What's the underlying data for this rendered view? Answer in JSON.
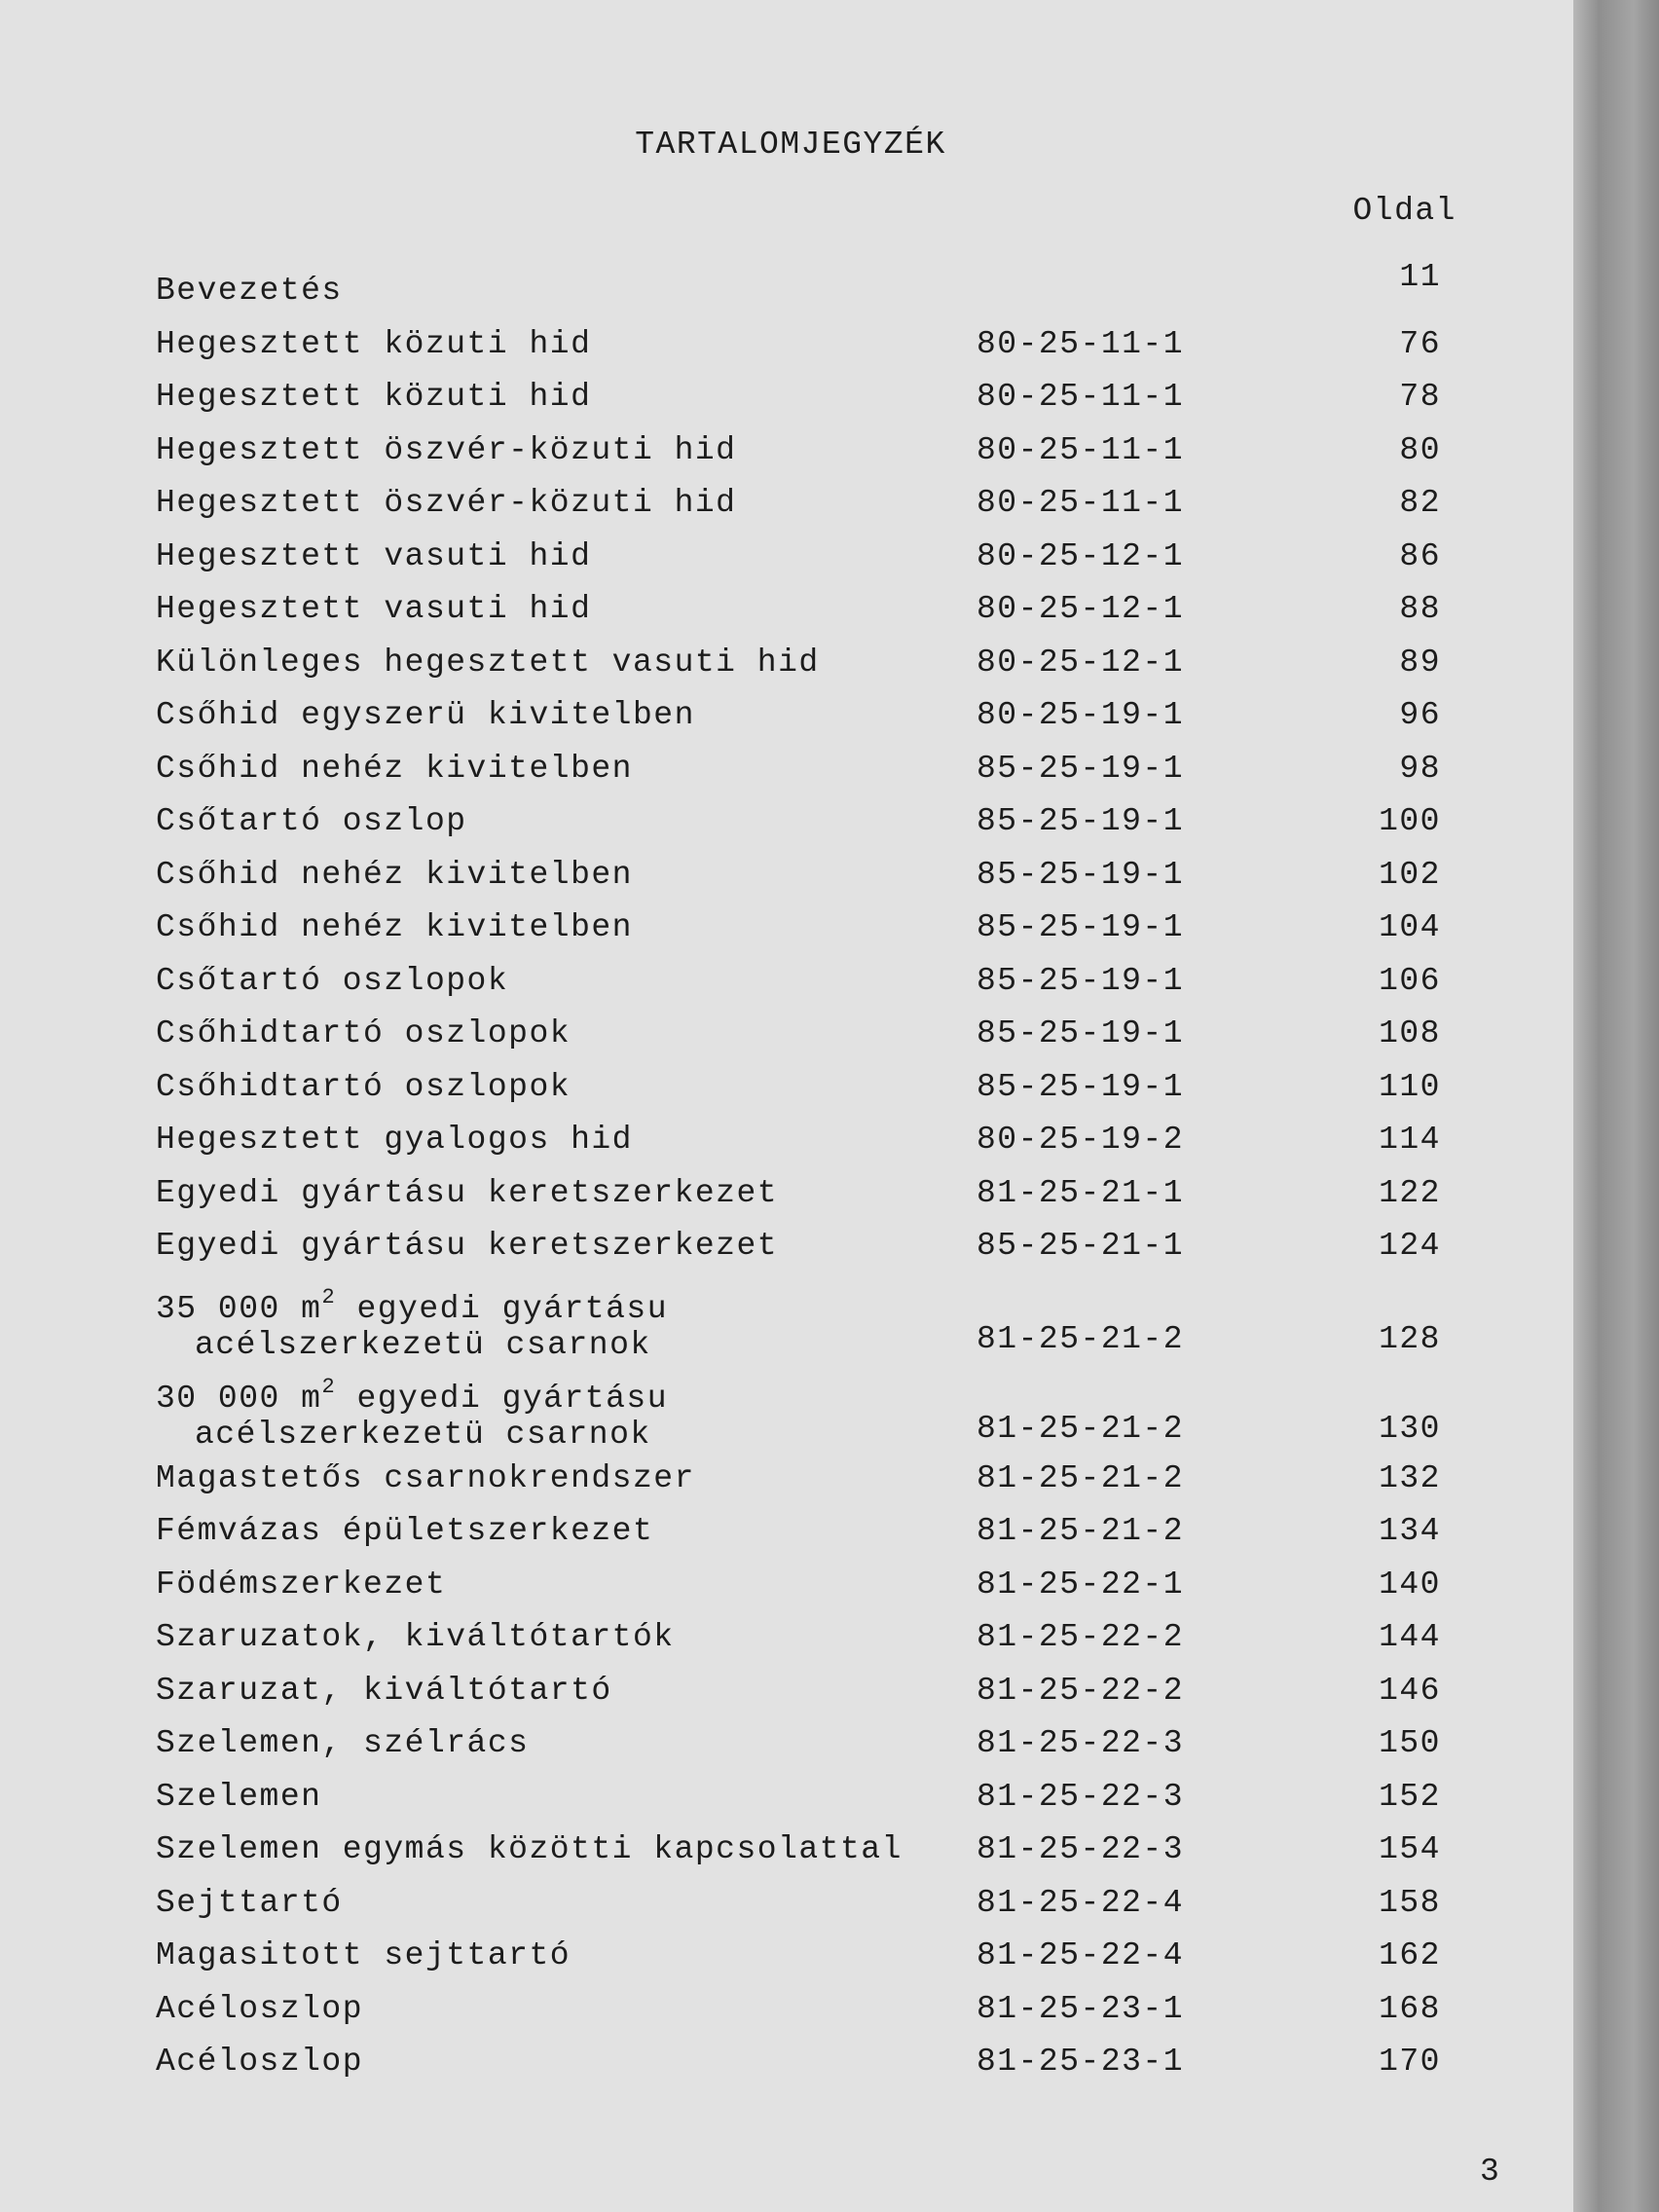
{
  "header": {
    "title": "TARTALOMJEGYZÉK",
    "column": "Oldal"
  },
  "entries": [
    {
      "title": "Bevezetés",
      "code": null,
      "page": "11"
    },
    {
      "title": "Hegesztett közuti hid",
      "code": "80-25-11-1",
      "page": "76"
    },
    {
      "title": "Hegesztett közuti hid",
      "code": "80-25-11-1",
      "page": "78"
    },
    {
      "title": "Hegesztett öszvér-közuti hid",
      "code": "80-25-11-1",
      "page": "80"
    },
    {
      "title": "Hegesztett öszvér-közuti hid",
      "code": "80-25-11-1",
      "page": "82"
    },
    {
      "title": "Hegesztett vasuti hid",
      "code": "80-25-12-1",
      "page": "86"
    },
    {
      "title": "Hegesztett vasuti hid",
      "code": "80-25-12-1",
      "page": "88"
    },
    {
      "title": "Különleges hegesztett vasuti hid",
      "code": "80-25-12-1",
      "page": "89"
    },
    {
      "title": "Csőhid egyszerü kivitelben",
      "code": "80-25-19-1",
      "page": "96"
    },
    {
      "title": "Csőhid nehéz kivitelben",
      "code": "85-25-19-1",
      "page": "98"
    },
    {
      "title": "Csőtartó oszlop",
      "code": "85-25-19-1",
      "page": "100"
    },
    {
      "title": "Csőhid nehéz kivitelben",
      "code": "85-25-19-1",
      "page": "102"
    },
    {
      "title": "Csőhid nehéz kivitelben",
      "code": "85-25-19-1",
      "page": "104"
    },
    {
      "title": "Csőtartó oszlopok",
      "code": "85-25-19-1",
      "page": "106"
    },
    {
      "title": "Csőhidtartó oszlopok",
      "code": "85-25-19-1",
      "page": "108"
    },
    {
      "title": "Csőhidtartó oszlopok",
      "code": "85-25-19-1",
      "page": "110"
    },
    {
      "title": "Hegesztett gyalogos hid",
      "code": "80-25-19-2",
      "page": "114"
    },
    {
      "title": "Egyedi gyártásu keretszerkezet",
      "code": "81-25-21-1",
      "page": "122"
    },
    {
      "title": "Egyedi gyártásu keretszerkezet",
      "code": "85-25-21-1",
      "page": "124"
    },
    {
      "title_before": "35 000 m",
      "superscript": "2",
      "title_after": " egyedi gyártásu",
      "title_line2": "acélszerkezetü csarnok",
      "code": "81-25-21-2",
      "page": "128"
    },
    {
      "title_before": "30 000 m",
      "superscript": "2",
      "title_after": " egyedi gyártásu",
      "title_line2": "acélszerkezetü csarnok",
      "code": "81-25-21-2",
      "page": "130"
    },
    {
      "title": "Magastetős csarnokrendszer",
      "code": "81-25-21-2",
      "page": "132"
    },
    {
      "title": "Fémvázas épületszerkezet",
      "code": "81-25-21-2",
      "page": "134"
    },
    {
      "title": "Födémszerkezet",
      "code": "81-25-22-1",
      "page": "140"
    },
    {
      "title": "Szaruzatok, kiváltótartók",
      "code": "81-25-22-2",
      "page": "144"
    },
    {
      "title": "Szaruzat, kiváltótartó",
      "code": "81-25-22-2",
      "page": "146"
    },
    {
      "title": "Szelemen, szélrács",
      "code": "81-25-22-3",
      "page": "150"
    },
    {
      "title": "Szelemen",
      "code": "81-25-22-3",
      "page": "152"
    },
    {
      "title": "Szelemen egymás közötti kapcsolattal",
      "code": "81-25-22-3",
      "page": "154"
    },
    {
      "title": "Sejttartó",
      "code": "81-25-22-4",
      "page": "158"
    },
    {
      "title": "Magasitott sejttartó",
      "code": "81-25-22-4",
      "page": "162"
    },
    {
      "title": "Acéloszlop",
      "code": "81-25-23-1",
      "page": "168"
    },
    {
      "title": "Acéloszlop",
      "code": "81-25-23-1",
      "page": "170"
    }
  ],
  "footer": {
    "page_number": "3"
  }
}
